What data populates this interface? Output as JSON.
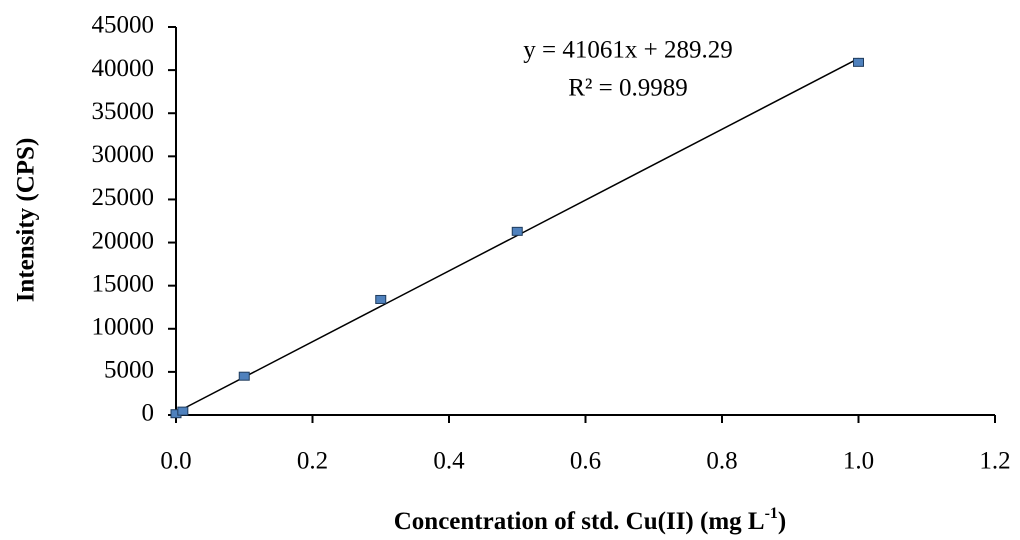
{
  "chart_data": {
    "type": "scatter",
    "x_label": {
      "text": "Concentration of std. Cu(II) (mg L",
      "sup": "-1",
      "end": ")"
    },
    "y_label": "Intensity (CPS)",
    "series": [
      {
        "color": "#4f81bd",
        "x": [
          0,
          0.01,
          0.1,
          0.3,
          0.5,
          1.0
        ],
        "values": [
          150,
          450,
          4500,
          13400,
          21300,
          40900
        ]
      }
    ],
    "trendline": {
      "slope": 41061,
      "intercept": 289.29,
      "label": "y = 41061x + 289.29",
      "r2_label": "R² = 0.9989"
    },
    "xlim": [
      0,
      1.2
    ],
    "xticks": [
      {
        "value": 0,
        "label": "0.0"
      },
      0.2,
      0.4,
      0.6,
      0.8,
      {
        "value": 1,
        "label": "1.0"
      },
      1.2
    ],
    "ylim": [
      0,
      45000
    ],
    "yticks": [
      0,
      5000,
      10000,
      15000,
      20000,
      25000,
      30000,
      35000,
      40000,
      45000
    ]
  }
}
